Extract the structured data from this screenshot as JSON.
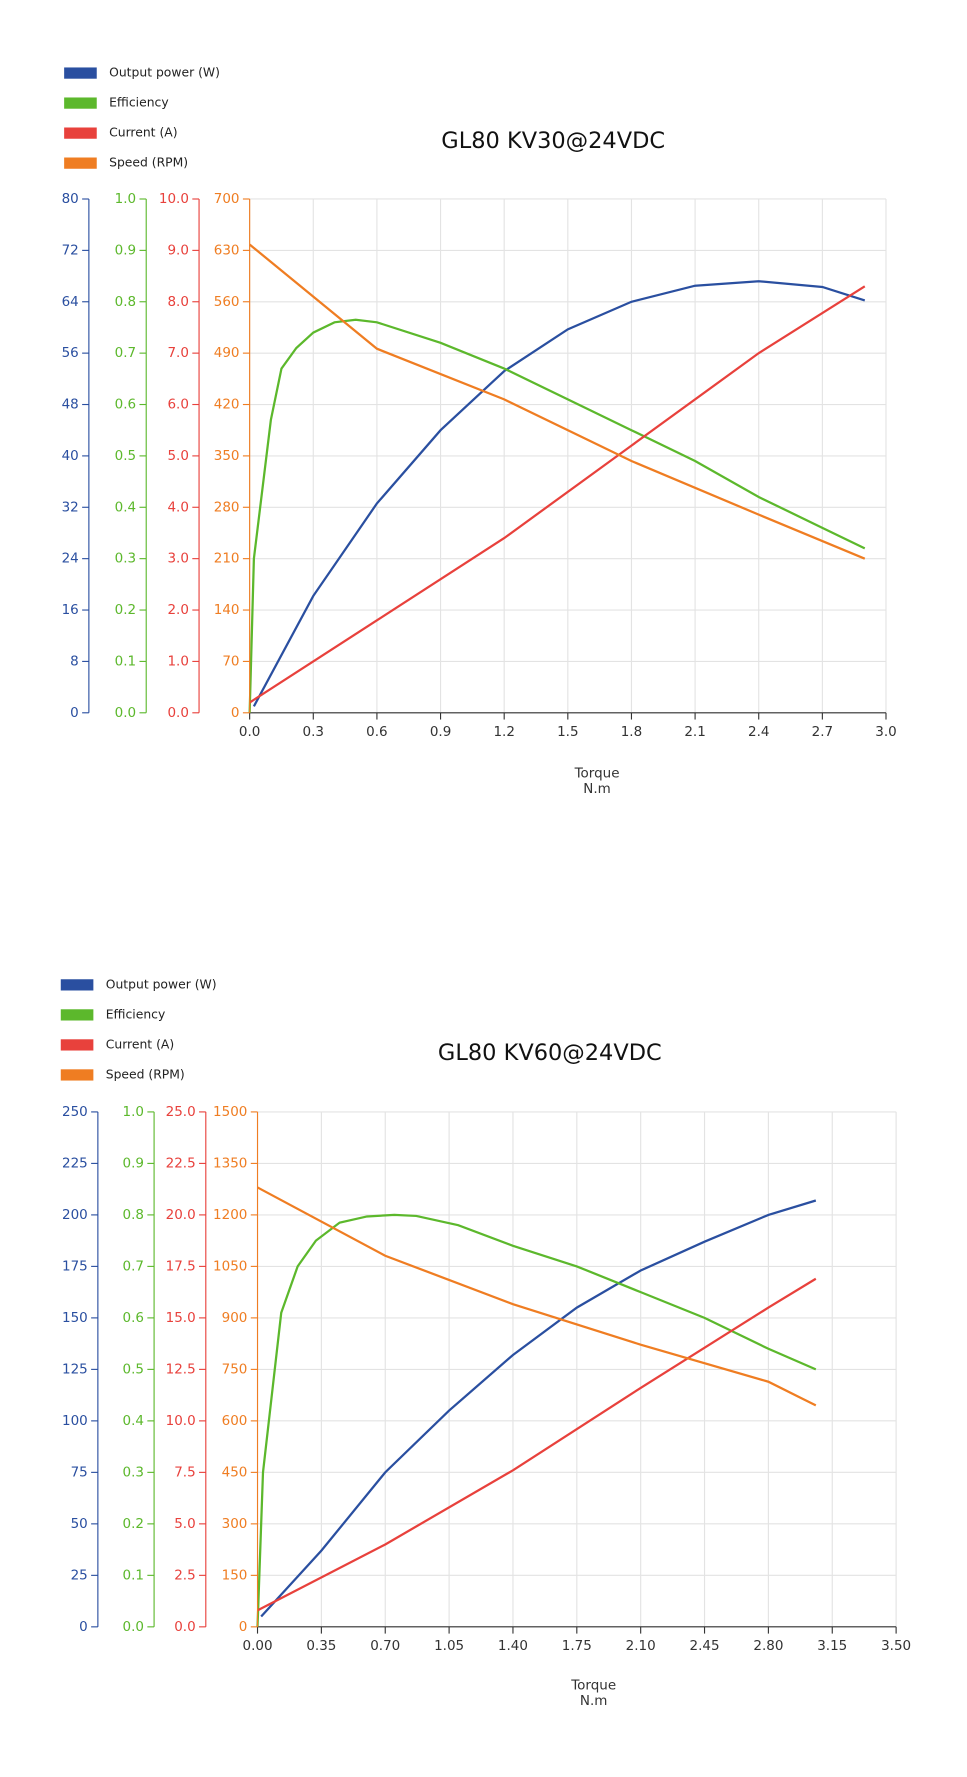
{
  "chart_data": [
    {
      "type": "line",
      "title": "GL80 KV30@24VDC",
      "x_label": "Torque",
      "x_unit": "N.m",
      "xlim": [
        0,
        3
      ],
      "xticks": [
        {
          "value": 0,
          "label": "0.0"
        },
        0.3,
        0.6,
        0.9,
        1.2,
        1.5,
        1.8,
        2.1,
        2.4,
        2.7,
        {
          "value": 3,
          "label": "3.0"
        }
      ],
      "grid": true,
      "series": [
        {
          "name": "Output power (W)",
          "color": "#2a4fa0",
          "ylim": [
            0,
            80
          ],
          "yticks": [
            0,
            8,
            16,
            24,
            32,
            40,
            48,
            56,
            64,
            72,
            80
          ],
          "x": [
            0.02,
            0.3,
            0.6,
            0.9,
            1.2,
            1.5,
            1.8,
            2.1,
            2.4,
            2.7,
            2.9
          ],
          "values": [
            1,
            18.2,
            32.6,
            44,
            53.2,
            59.7,
            64,
            66.5,
            67.2,
            66.3,
            64.2
          ]
        },
        {
          "name": "Efficiency",
          "color": "#5cb82c",
          "ylim": [
            0,
            1
          ],
          "yticks": [
            {
              "value": 0,
              "label": "0.0"
            },
            0.1,
            0.2,
            0.3,
            0.4,
            0.5,
            0.6,
            0.7,
            0.8,
            0.9,
            {
              "value": 1,
              "label": "1.0"
            }
          ],
          "x": [
            0,
            0.02,
            0.1,
            0.15,
            0.22,
            0.3,
            0.4,
            0.5,
            0.6,
            0.9,
            1.2,
            1.5,
            1.8,
            2.1,
            2.4,
            2.7,
            2.9
          ],
          "values": [
            0,
            0.3,
            0.57,
            0.67,
            0.71,
            0.74,
            0.76,
            0.765,
            0.76,
            0.72,
            0.67,
            0.61,
            0.55,
            0.49,
            0.42,
            0.36,
            0.32
          ]
        },
        {
          "name": "Current (A)",
          "color": "#e8413c",
          "ylim": [
            0,
            10
          ],
          "yticks": [
            {
              "value": 0,
              "label": "0.0"
            },
            {
              "value": 1,
              "label": "1.0"
            },
            {
              "value": 2,
              "label": "2.0"
            },
            {
              "value": 3,
              "label": "3.0"
            },
            {
              "value": 4,
              "label": "4.0"
            },
            {
              "value": 5,
              "label": "5.0"
            },
            {
              "value": 6,
              "label": "6.0"
            },
            {
              "value": 7,
              "label": "7.0"
            },
            {
              "value": 8,
              "label": "8.0"
            },
            {
              "value": 9,
              "label": "9.0"
            },
            {
              "value": 10,
              "label": "10.0"
            }
          ],
          "x": [
            0,
            0.6,
            1.2,
            1.8,
            2.4,
            2.9
          ],
          "values": [
            0.2,
            1.8,
            3.4,
            5.2,
            7,
            8.3
          ]
        },
        {
          "name": "Speed (RPM)",
          "color": "#ef7d22",
          "ylim": [
            0,
            700
          ],
          "yticks": [
            0,
            70,
            140,
            210,
            280,
            350,
            420,
            490,
            560,
            630,
            700
          ],
          "x": [
            0,
            0.6,
            1.2,
            1.8,
            2.4,
            2.9
          ],
          "values": [
            638,
            496,
            427,
            343,
            270,
            210
          ]
        }
      ]
    },
    {
      "type": "line",
      "title": "GL80 KV60@24VDC",
      "x_label": "Torque",
      "x_unit": "N.m",
      "xlim": [
        0,
        3.5
      ],
      "xticks": [
        {
          "value": 0,
          "label": "0.00"
        },
        0.35,
        {
          "value": 0.7,
          "label": "0.70"
        },
        1.05,
        {
          "value": 1.4,
          "label": "1.40"
        },
        1.75,
        {
          "value": 2.1,
          "label": "2.10"
        },
        2.45,
        {
          "value": 2.8,
          "label": "2.80"
        },
        3.15,
        {
          "value": 3.5,
          "label": "3.50"
        }
      ],
      "grid": true,
      "series": [
        {
          "name": "Output power (W)",
          "color": "#2a4fa0",
          "ylim": [
            0,
            250
          ],
          "yticks": [
            0,
            25,
            50,
            75,
            100,
            125,
            150,
            175,
            200,
            225,
            250
          ],
          "x": [
            0.02,
            0.35,
            0.7,
            1.05,
            1.4,
            1.75,
            2.1,
            2.45,
            2.8,
            3.06
          ],
          "values": [
            5,
            37,
            75,
            105,
            132,
            155,
            173,
            187,
            200,
            207
          ]
        },
        {
          "name": "Efficiency",
          "color": "#5cb82c",
          "ylim": [
            0,
            1
          ],
          "yticks": [
            {
              "value": 0,
              "label": "0.0"
            },
            0.1,
            0.2,
            0.3,
            0.4,
            0.5,
            0.6,
            0.7,
            0.8,
            0.9,
            {
              "value": 1,
              "label": "1.0"
            }
          ],
          "x": [
            0,
            0.03,
            0.13,
            0.22,
            0.32,
            0.45,
            0.6,
            0.75,
            0.87,
            1.1,
            1.4,
            1.75,
            2.1,
            2.45,
            2.8,
            3.06
          ],
          "values": [
            0,
            0.3,
            0.61,
            0.7,
            0.75,
            0.785,
            0.797,
            0.8,
            0.798,
            0.78,
            0.74,
            0.7,
            0.65,
            0.6,
            0.54,
            0.5
          ]
        },
        {
          "name": "Current (A)",
          "color": "#e8413c",
          "ylim": [
            0,
            25
          ],
          "yticks": [
            {
              "value": 0,
              "label": "0.0"
            },
            2.5,
            {
              "value": 5,
              "label": "5.0"
            },
            7.5,
            {
              "value": 10,
              "label": "10.0"
            },
            12.5,
            {
              "value": 15,
              "label": "15.0"
            },
            17.5,
            {
              "value": 20,
              "label": "20.0"
            },
            22.5,
            {
              "value": 25,
              "label": "25.0"
            }
          ],
          "x": [
            0,
            0.7,
            1.4,
            2.1,
            2.8,
            3.06
          ],
          "values": [
            0.8,
            4,
            7.6,
            11.6,
            15.5,
            16.9
          ]
        },
        {
          "name": "Speed (RPM)",
          "color": "#ef7d22",
          "ylim": [
            0,
            1500
          ],
          "yticks": [
            0,
            150,
            300,
            450,
            600,
            750,
            900,
            1050,
            1200,
            1350,
            1500
          ],
          "x": [
            0,
            0.7,
            1.4,
            2.1,
            2.8,
            3.06
          ],
          "values": [
            1280,
            1081,
            940,
            822,
            714,
            645
          ]
        }
      ]
    }
  ]
}
